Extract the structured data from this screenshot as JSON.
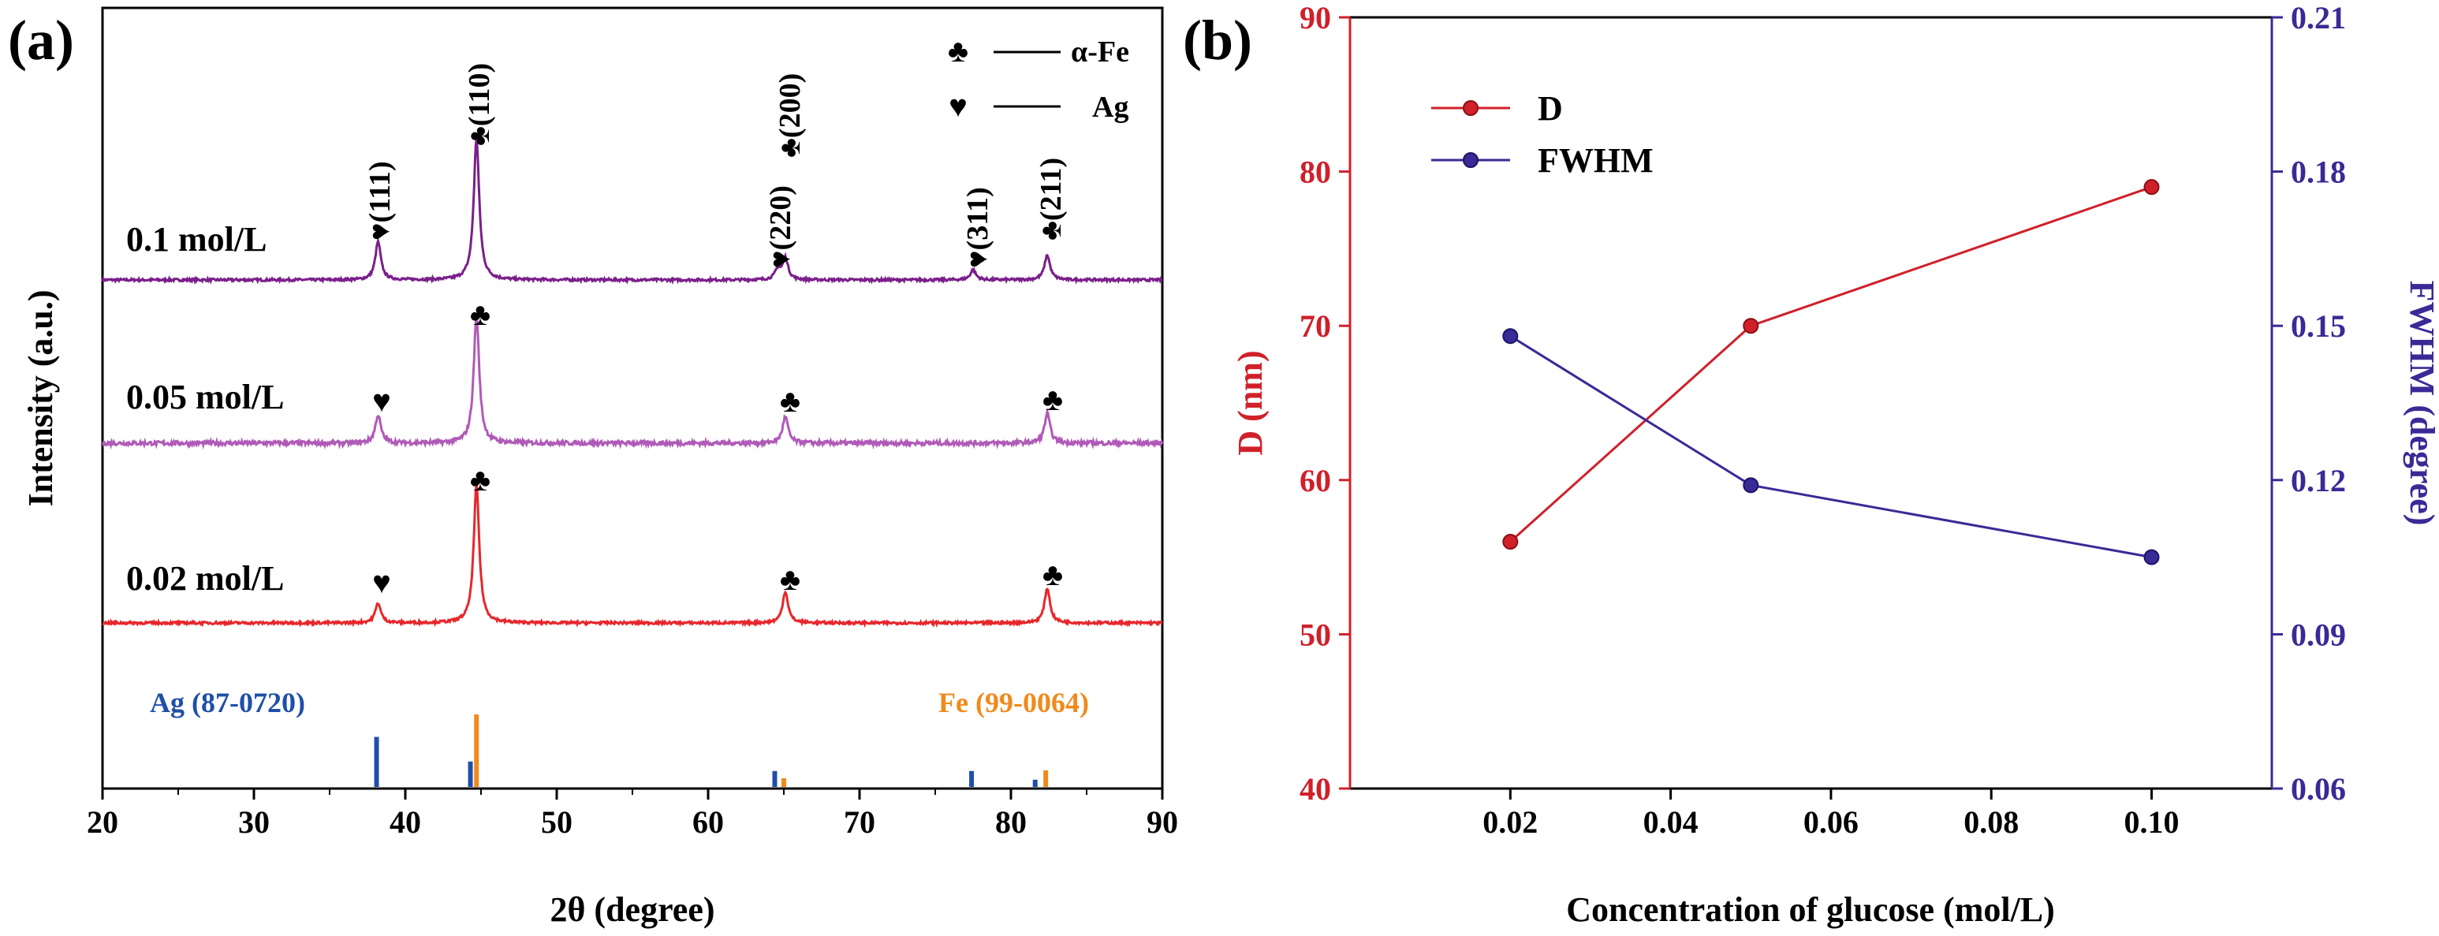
{
  "panel_a": {
    "label": "(a)",
    "xlabel": "2θ (degree)",
    "ylabel": "Intensity (a.u.)",
    "legend": [
      {
        "symbol": "♣",
        "text": "α-Fe"
      },
      {
        "symbol": "♥",
        "text": "Ag"
      }
    ],
    "samples": [
      "0.1 mol/L",
      "0.05 mol/L",
      "0.02 mol/L"
    ],
    "annotations": {
      "ag111": "♥(111)",
      "fe110": "♣(110)",
      "ag220": "♥(220)",
      "fe200": "♣(200)",
      "ag311": "♥(311)",
      "fe211": "♣(211)",
      "club": "♣",
      "heart": "♥"
    },
    "references": [
      {
        "name": "Ag (87-0720)",
        "color": "#1f4fa8"
      },
      {
        "name": "Fe (99-0064)",
        "color": "#f08a1c"
      }
    ],
    "colors": {
      "0.1 mol/L": "#7a1f8a",
      "0.05 mol/L": "#b05ab8",
      "0.02 mol/L": "#e8262b"
    }
  },
  "panel_b": {
    "label": "(b)",
    "xlabel": "Concentration of glucose (mol/L)",
    "ylabel_left": "D (nm)",
    "ylabel_right": "FWHM (degree)",
    "colors": {
      "D": "#d0202a",
      "FWHM": "#3a2a96"
    }
  },
  "chart_data": [
    {
      "type": "line",
      "panel": "(a)",
      "xlabel": "2θ (degree)",
      "ylabel": "Intensity (a.u.)",
      "xlim": [
        20,
        90
      ],
      "xticks": [
        20,
        30,
        40,
        50,
        60,
        70,
        80,
        90
      ],
      "series": [
        {
          "name": "0.1 mol/L",
          "peaks": [
            {
              "x": 38.2,
              "h": 0.23
            },
            {
              "x": 44.7,
              "h": 0.85
            },
            {
              "x": 64.6,
              "h": 0.06
            },
            {
              "x": 65.1,
              "h": 0.13
            },
            {
              "x": 77.5,
              "h": 0.06
            },
            {
              "x": 82.4,
              "h": 0.15
            }
          ]
        },
        {
          "name": "0.05 mol/L",
          "peaks": [
            {
              "x": 38.2,
              "h": 0.17
            },
            {
              "x": 44.7,
              "h": 0.77
            },
            {
              "x": 65.1,
              "h": 0.16
            },
            {
              "x": 82.4,
              "h": 0.18
            }
          ]
        },
        {
          "name": "0.02 mol/L",
          "peaks": [
            {
              "x": 38.2,
              "h": 0.12
            },
            {
              "x": 44.7,
              "h": 0.83
            },
            {
              "x": 65.1,
              "h": 0.19
            },
            {
              "x": 82.4,
              "h": 0.21
            }
          ]
        }
      ],
      "reference_lines": [
        {
          "name": "Ag (87-0720)",
          "lines": [
            {
              "x": 38.1,
              "h": 0.69
            },
            {
              "x": 44.3,
              "h": 0.35
            },
            {
              "x": 64.4,
              "h": 0.22
            },
            {
              "x": 77.4,
              "h": 0.22
            },
            {
              "x": 81.6,
              "h": 0.1
            }
          ]
        },
        {
          "name": "Fe (99-0064)",
          "lines": [
            {
              "x": 44.7,
              "h": 1.0
            },
            {
              "x": 65.0,
              "h": 0.12
            },
            {
              "x": 82.3,
              "h": 0.23
            }
          ]
        }
      ]
    },
    {
      "type": "line",
      "panel": "(b)",
      "xlabel": "Concentration of glucose (mol/L)",
      "xlim": [
        0.0,
        0.115
      ],
      "xticks": [
        0.02,
        0.04,
        0.06,
        0.08,
        0.1
      ],
      "x": [
        0.02,
        0.05,
        0.1
      ],
      "series": [
        {
          "name": "D",
          "axis": "left",
          "ylabel": "D (nm)",
          "ylim": [
            40,
            90
          ],
          "yticks": [
            40,
            50,
            60,
            70,
            80,
            90
          ],
          "values": [
            56,
            70,
            79
          ]
        },
        {
          "name": "FWHM",
          "axis": "right",
          "ylabel": "FWHM (degree)",
          "ylim": [
            0.06,
            0.21
          ],
          "yticks": [
            0.06,
            0.09,
            0.12,
            0.15,
            0.18,
            0.21
          ],
          "values": [
            0.148,
            0.119,
            0.105
          ]
        }
      ]
    }
  ]
}
